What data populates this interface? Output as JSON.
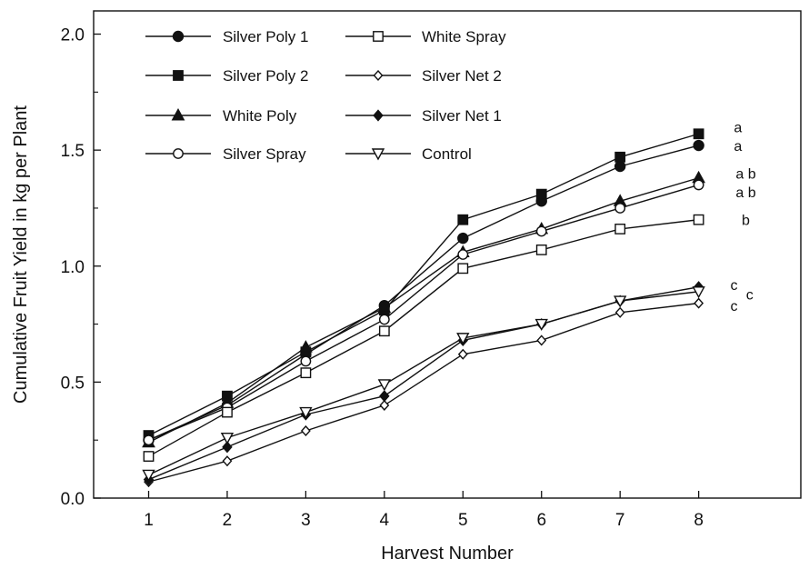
{
  "chart_data": {
    "type": "line",
    "title": "",
    "xlabel": "Harvest Number",
    "ylabel": "Cumulative Fruit Yield in kg per Plant",
    "x": [
      1,
      2,
      3,
      4,
      5,
      6,
      7,
      8
    ],
    "xlim": [
      0.3,
      9.3
    ],
    "ylim": [
      0,
      2.1
    ],
    "x_ticks": [
      "1",
      "2",
      "3",
      "4",
      "5",
      "6",
      "7",
      "8"
    ],
    "y_ticks": [
      "0.0",
      "0.5",
      "1.0",
      "1.5",
      "2.0"
    ],
    "grid": false,
    "legend_position": "top-left",
    "series": [
      {
        "name": "Silver Poly 1",
        "marker": "circle-filled",
        "values": [
          0.25,
          0.4,
          0.62,
          0.83,
          1.12,
          1.28,
          1.43,
          1.52
        ]
      },
      {
        "name": "Silver Poly 2",
        "marker": "square-filled",
        "values": [
          0.27,
          0.44,
          0.63,
          0.81,
          1.2,
          1.31,
          1.47,
          1.57
        ]
      },
      {
        "name": "White Poly",
        "marker": "triangle-up-filled",
        "values": [
          0.24,
          0.41,
          0.65,
          0.82,
          1.06,
          1.16,
          1.28,
          1.38
        ]
      },
      {
        "name": "Silver Spray",
        "marker": "circle-open",
        "values": [
          0.25,
          0.39,
          0.59,
          0.77,
          1.05,
          1.15,
          1.25,
          1.35
        ]
      },
      {
        "name": "White Spray",
        "marker": "square-open",
        "values": [
          0.18,
          0.37,
          0.54,
          0.72,
          0.99,
          1.07,
          1.16,
          1.2
        ]
      },
      {
        "name": "Silver Net 2",
        "marker": "diamond-open",
        "values": [
          0.07,
          0.16,
          0.29,
          0.4,
          0.62,
          0.68,
          0.8,
          0.84
        ]
      },
      {
        "name": "Silver Net 1",
        "marker": "diamond-filled",
        "values": [
          0.08,
          0.22,
          0.36,
          0.44,
          0.68,
          0.75,
          0.85,
          0.91
        ]
      },
      {
        "name": "Control",
        "marker": "triangle-down-open",
        "values": [
          0.1,
          0.26,
          0.37,
          0.49,
          0.69,
          0.75,
          0.85,
          0.89
        ]
      }
    ],
    "annotations": [
      {
        "text": "a",
        "x": 8.5,
        "y": 1.6
      },
      {
        "text": "a",
        "x": 8.5,
        "y": 1.52
      },
      {
        "text": "a b",
        "x": 8.6,
        "y": 1.4
      },
      {
        "text": "a b",
        "x": 8.6,
        "y": 1.32
      },
      {
        "text": "b",
        "x": 8.6,
        "y": 1.2
      },
      {
        "text": "c",
        "x": 8.45,
        "y": 0.92
      },
      {
        "text": "c",
        "x": 8.65,
        "y": 0.88
      },
      {
        "text": "c",
        "x": 8.45,
        "y": 0.83
      }
    ]
  }
}
